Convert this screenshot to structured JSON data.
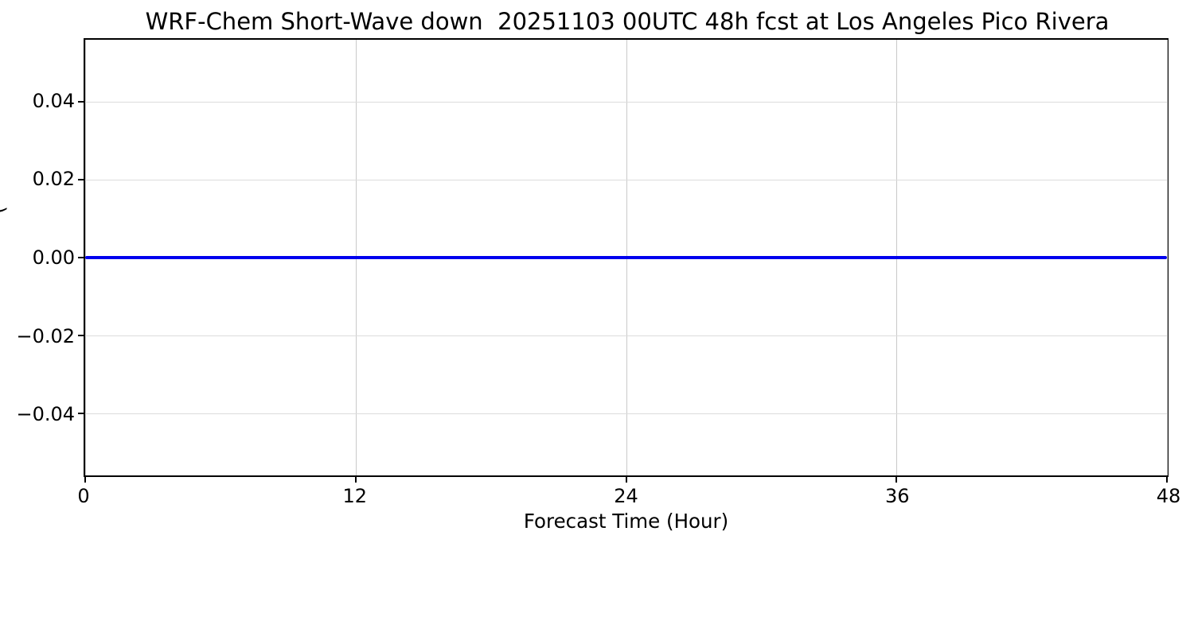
{
  "chart_data": {
    "type": "line",
    "title": "WRF-Chem Short-Wave down  20251103 00UTC 48h fcst at Los Angeles Pico Rivera",
    "xlabel": "Forecast Time (Hour)",
    "ylabel_fragment": "(",
    "xlim": [
      0,
      48
    ],
    "ylim": [
      -0.056,
      0.056
    ],
    "x_ticks": [
      0,
      12,
      24,
      36,
      48
    ],
    "y_ticks": [
      0.04,
      0.02,
      0.0,
      -0.02,
      -0.04
    ],
    "y_tick_labels": [
      "0.04",
      "0.02",
      "0.00",
      "−0.02",
      "−0.04"
    ],
    "grid": true,
    "series": [
      {
        "name": "Short-Wave down",
        "color": "#0000ee",
        "x": [
          0,
          48
        ],
        "values": [
          0.0,
          0.0
        ],
        "note": "constant zero value across the entire 48-hour forecast"
      }
    ]
  }
}
